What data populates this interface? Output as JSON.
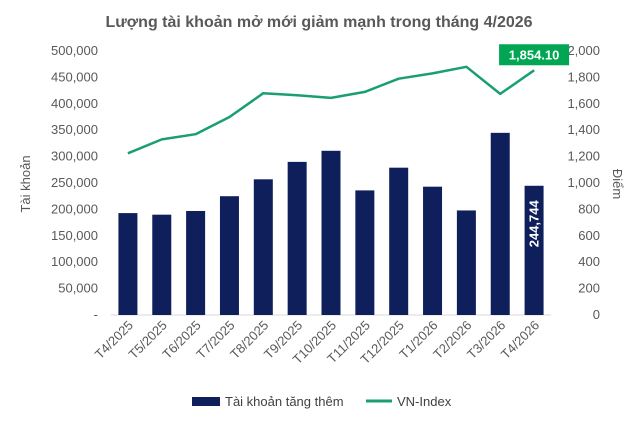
{
  "chart_data": {
    "type": "bar",
    "title": "Lượng tài khoản mở mới giảm mạnh trong tháng 4/2026",
    "categories": [
      "T4/2025",
      "T5/2025",
      "T6/2025",
      "T7/2025",
      "T8/2025",
      "T9/2025",
      "T10/2025",
      "T11/2025",
      "T12/2025",
      "T1/2026",
      "T2/2026",
      "T3/2026",
      "T4/2026"
    ],
    "series": [
      {
        "name": "Tài khoản tăng thêm",
        "type": "bar",
        "axis": "left",
        "color": "#0f1f5c",
        "values": [
          193000,
          190000,
          197000,
          225000,
          257000,
          290000,
          311000,
          236000,
          279000,
          243000,
          198000,
          345000,
          244744
        ]
      },
      {
        "name": "VN-Index",
        "type": "line",
        "axis": "right",
        "color": "#1a9e74",
        "values": [
          1225,
          1330,
          1370,
          1500,
          1680,
          1665,
          1645,
          1690,
          1790,
          1830,
          1880,
          1675,
          1854.1
        ]
      }
    ],
    "ylabel": "Tài khoản",
    "y2label": "Điểm",
    "ylim": [
      0,
      500000
    ],
    "y2lim": [
      0,
      2000
    ],
    "yticks": [
      "500,000",
      "450,000",
      "400,000",
      "350,000",
      "300,000",
      "250,000",
      "200,000",
      "150,000",
      "100,000",
      "50,000",
      "-"
    ],
    "y2ticks": [
      "2,000",
      "1,800",
      "1,600",
      "1,400",
      "1,200",
      "1,000",
      "800",
      "600",
      "400",
      "200",
      "0"
    ],
    "bar_data_label": "244,744",
    "line_data_label": "1,854.10",
    "highlight_color": "#00a651",
    "grid": false,
    "legend_position": "bottom"
  }
}
